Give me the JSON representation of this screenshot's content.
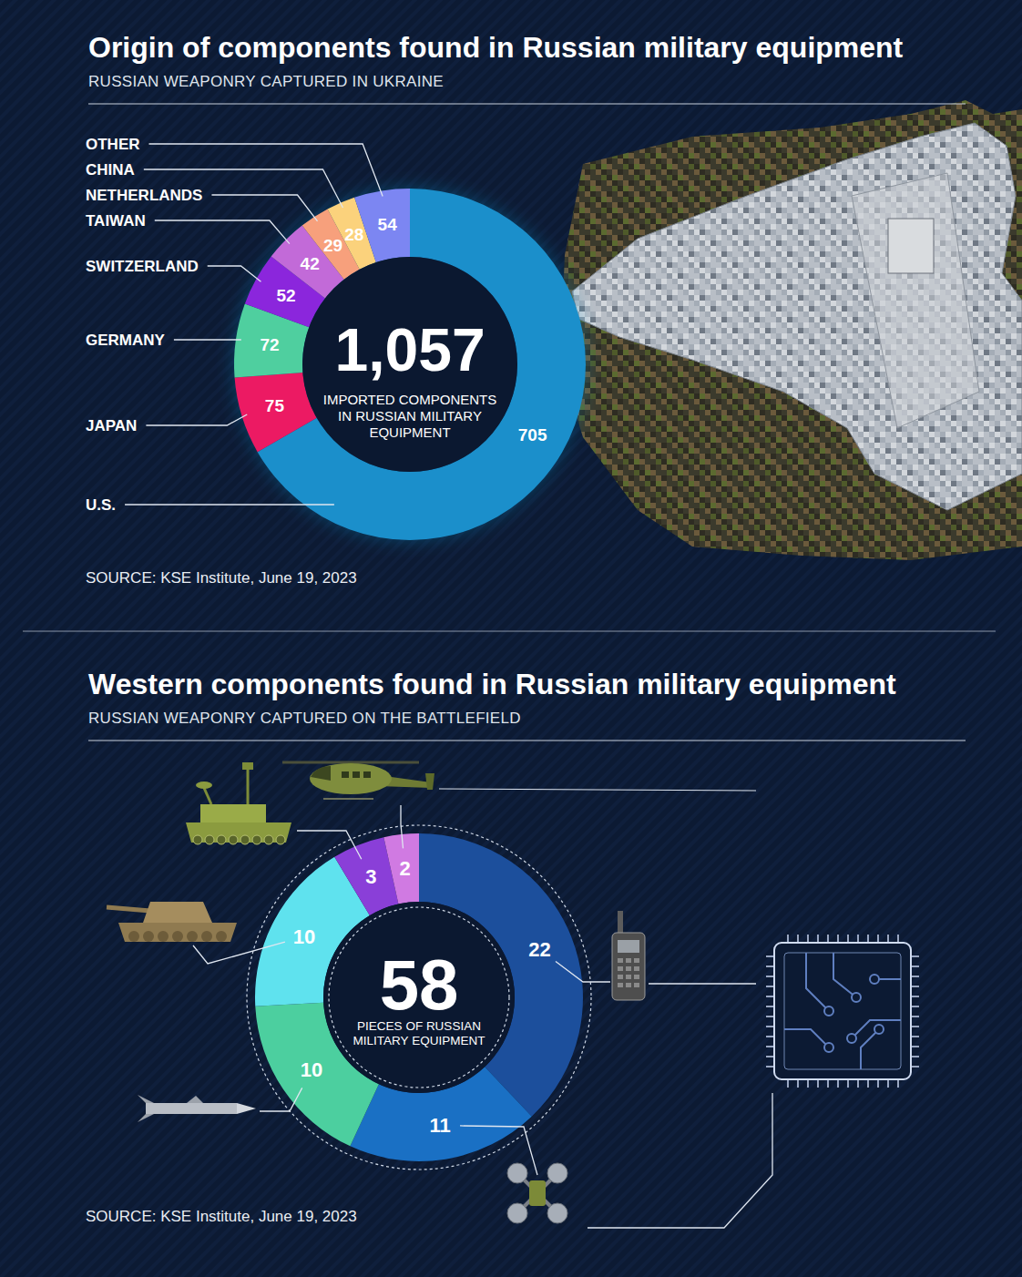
{
  "chart_data": [
    {
      "type": "donut",
      "title": "Origin of components found in Russian military equipment",
      "subtitle": "RUSSIAN WEAPONRY CAPTURED IN UKRAINE",
      "categories": [
        "U.S.",
        "JAPAN",
        "GERMANY",
        "SWITZERLAND",
        "TAIWAN",
        "NETHERLANDS",
        "CHINA",
        "OTHER"
      ],
      "values": [
        705,
        75,
        72,
        52,
        42,
        29,
        28,
        54
      ],
      "colors": [
        "#1b8fcb",
        "#ec1a63",
        "#4fcf9f",
        "#8b26dc",
        "#c26ad8",
        "#f7a07c",
        "#fbd27c",
        "#7c86f2"
      ],
      "data_labels": true,
      "total": {
        "value": 1057,
        "label": "1,057"
      },
      "total_text": "IMPORTED COMPONENTS IN RUSSIAN MILITARY EQUIPMENT",
      "source": "SOURCE: KSE Institute, June 19, 2023"
    },
    {
      "type": "donut",
      "title": "Western components found in Russian military equipment",
      "subtitle": "RUSSIAN WEAPONRY CAPTURED ON THE BATTLEFIELD",
      "categories": [
        null,
        null,
        null,
        null,
        null,
        null
      ],
      "values": [
        22,
        11,
        10,
        10,
        3,
        2
      ],
      "colors": [
        "#1c4f9c",
        "#1a70c4",
        "#4ccf9f",
        "#5fe2ee",
        "#8a3fd8",
        "#d07ae2"
      ],
      "data_labels": true,
      "total": 58,
      "total_text": "PIECES OF RUSSIAN MILITARY EQUIPMENT",
      "source": "SOURCE: KSE Institute, June 19, 2023"
    }
  ]
}
